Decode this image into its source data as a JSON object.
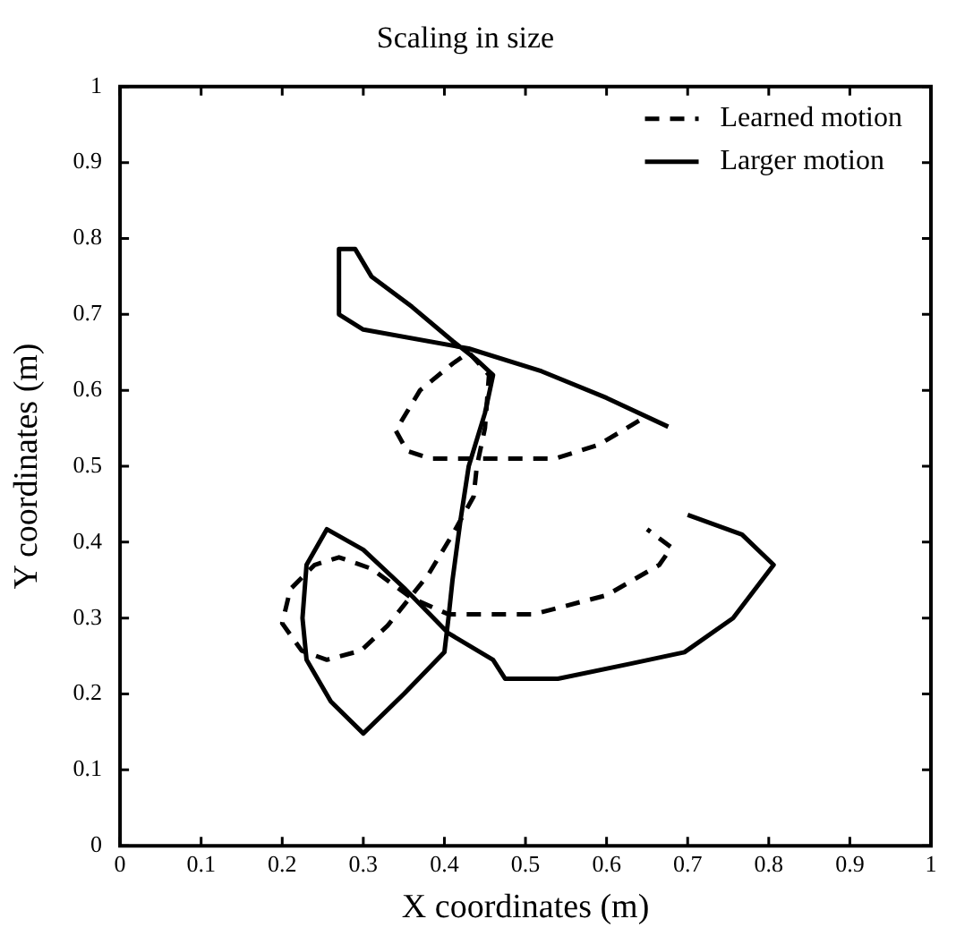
{
  "chart_data": {
    "type": "line",
    "title": "Scaling in size",
    "xlabel": "X coordinates (m)",
    "ylabel": "Y coordinates (m)",
    "xlim": [
      0,
      1
    ],
    "ylim": [
      0,
      1
    ],
    "xticks": [
      0,
      0.1,
      0.2,
      0.3,
      0.4,
      0.5,
      0.6,
      0.7,
      0.8,
      0.9,
      1
    ],
    "yticks": [
      0,
      0.1,
      0.2,
      0.3,
      0.4,
      0.5,
      0.6,
      0.7,
      0.8,
      0.9,
      1
    ],
    "grid": false,
    "legend": "top right",
    "marker": "none",
    "series": [
      {
        "name": "Learned motion",
        "color": "#000000",
        "line_style": "dashed",
        "x": [
          0.64,
          0.59,
          0.536,
          0.383,
          0.354,
          0.34,
          0.37,
          0.41,
          0.43,
          0.455,
          0.45,
          0.44,
          0.436,
          0.41,
          0.38,
          0.33,
          0.297,
          0.255,
          0.224,
          0.2,
          0.21,
          0.24,
          0.27,
          0.31,
          0.36,
          0.405,
          0.51,
          0.6,
          0.665,
          0.68,
          0.65
        ],
        "values": [
          0.56,
          0.528,
          0.51,
          0.51,
          0.52,
          0.547,
          0.6,
          0.635,
          0.65,
          0.62,
          0.55,
          0.5,
          0.46,
          0.41,
          0.357,
          0.29,
          0.257,
          0.245,
          0.257,
          0.293,
          0.338,
          0.37,
          0.38,
          0.365,
          0.326,
          0.305,
          0.305,
          0.33,
          0.37,
          0.393,
          0.417
        ]
      },
      {
        "name": "Larger motion",
        "color": "#000000",
        "line_style": "solid",
        "x": [
          0.676,
          0.6,
          0.52,
          0.43,
          0.3,
          0.27,
          0.27,
          0.29,
          0.31,
          0.36,
          0.41,
          0.44,
          0.46,
          0.45,
          0.43,
          0.42,
          0.41,
          0.405,
          0.4,
          0.35,
          0.3,
          0.26,
          0.23,
          0.225,
          0.23,
          0.255,
          0.3,
          0.35,
          0.405,
          0.46,
          0.475,
          0.54,
          0.63,
          0.696,
          0.756,
          0.806,
          0.767,
          0.7
        ],
        "values": [
          0.552,
          0.59,
          0.625,
          0.655,
          0.68,
          0.7,
          0.786,
          0.786,
          0.75,
          0.71,
          0.665,
          0.64,
          0.62,
          0.57,
          0.5,
          0.43,
          0.35,
          0.3,
          0.255,
          0.2,
          0.148,
          0.19,
          0.245,
          0.3,
          0.37,
          0.417,
          0.39,
          0.34,
          0.28,
          0.245,
          0.22,
          0.22,
          0.24,
          0.255,
          0.3,
          0.37,
          0.41,
          0.436
        ]
      }
    ]
  }
}
